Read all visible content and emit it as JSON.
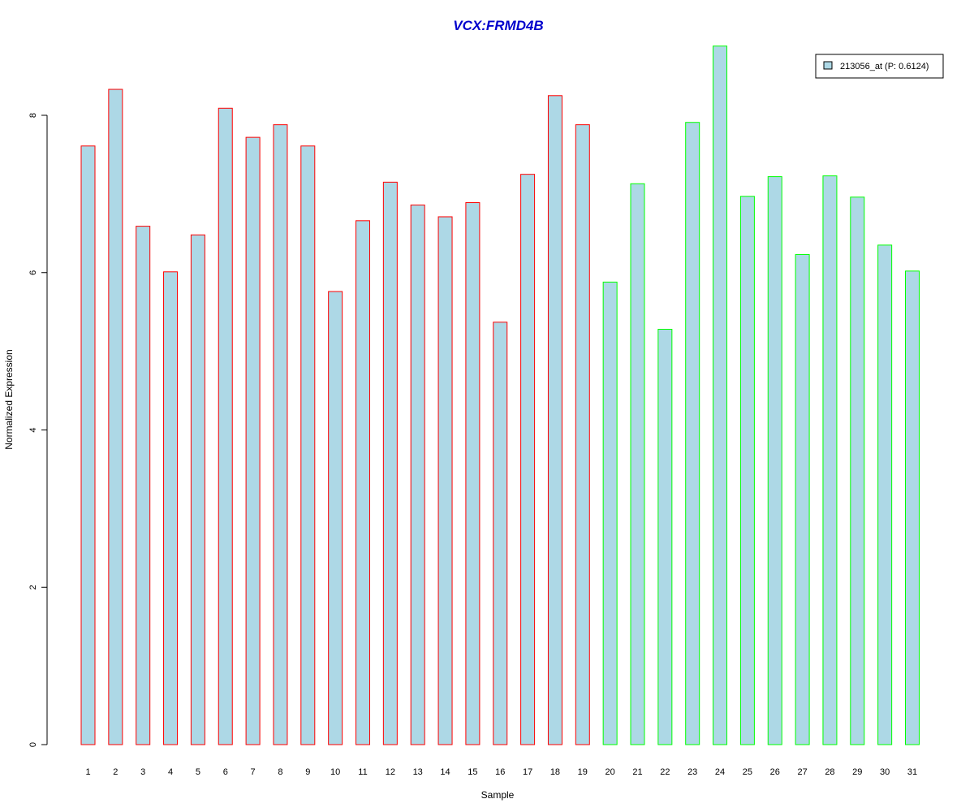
{
  "chart_data": {
    "type": "bar",
    "title": "VCX:FRMD4B",
    "xlabel": "Sample",
    "ylabel": "Normalized Expression",
    "ylim": [
      0,
      8.85
    ],
    "y_ticks": [
      0,
      2,
      4,
      6,
      8
    ],
    "grid": false,
    "legend_position": "top-right",
    "categories": [
      "1",
      "2",
      "3",
      "4",
      "5",
      "6",
      "7",
      "8",
      "9",
      "10",
      "11",
      "12",
      "13",
      "14",
      "15",
      "16",
      "17",
      "18",
      "19",
      "20",
      "21",
      "22",
      "23",
      "24",
      "25",
      "26",
      "27",
      "28",
      "29",
      "30",
      "31"
    ],
    "series": [
      {
        "name": "213056_at (P: 0.6124)",
        "values": [
          7.61,
          8.33,
          6.59,
          6.01,
          6.48,
          8.09,
          7.72,
          7.88,
          7.61,
          5.76,
          6.66,
          7.15,
          6.86,
          6.71,
          6.89,
          5.37,
          7.25,
          8.25,
          7.88,
          5.88,
          7.13,
          5.28,
          7.91,
          8.88,
          6.97,
          7.22,
          6.23,
          7.23,
          6.96,
          6.35,
          6.02
        ]
      }
    ],
    "groups": [
      {
        "range": [
          1,
          19
        ],
        "border": "#ff0000"
      },
      {
        "range": [
          20,
          31
        ],
        "border": "#00ff00"
      }
    ],
    "colors": {
      "bar_fill": "#add8e6",
      "title": "#0000cc",
      "group1_border": "#ff0000",
      "group2_border": "#00ff00"
    }
  }
}
